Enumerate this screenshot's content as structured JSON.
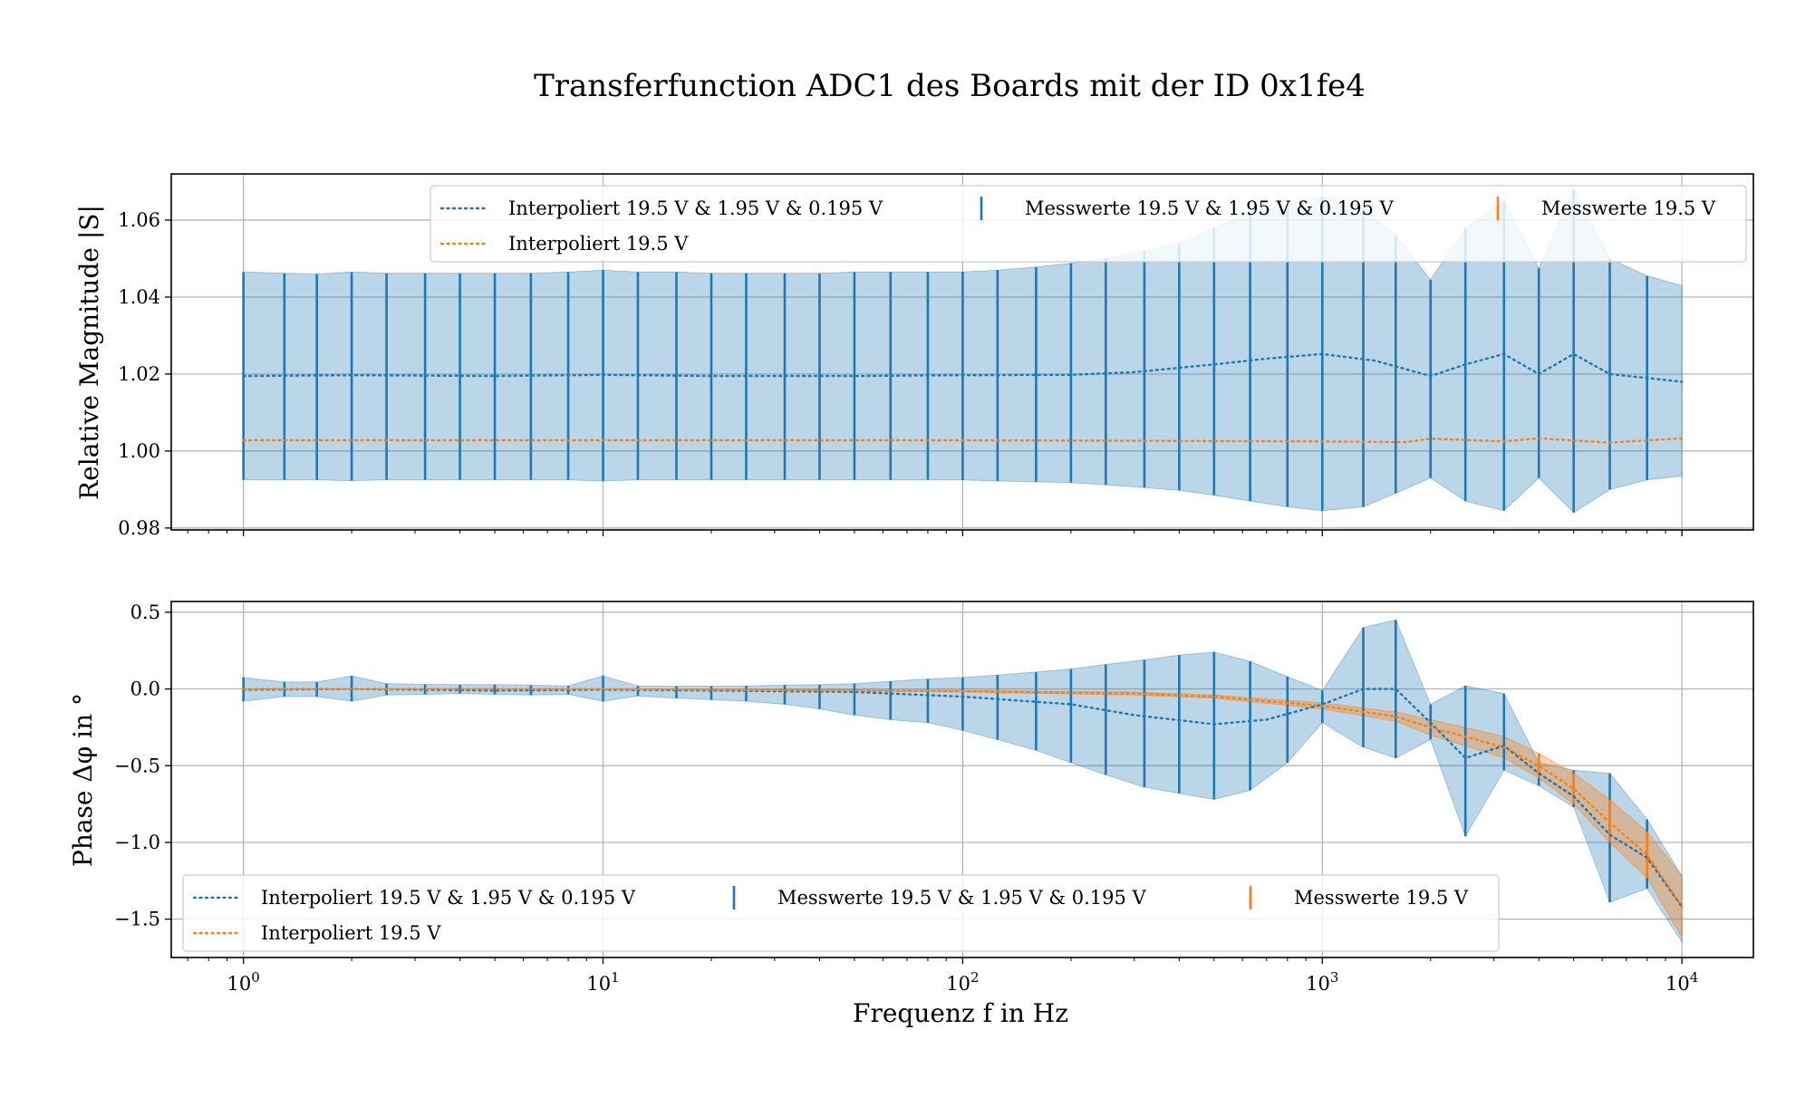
{
  "title": "Transferfunction ADC1 des Boards mit der ID 0x1fe4",
  "colors": {
    "blue": "#1f77b4",
    "orange": "#ff7f0e",
    "grid": "#b0b0b0"
  },
  "chart_data": [
    {
      "type": "line",
      "panel": "magnitude",
      "ylabel": "Relative Magnitude |S|",
      "xlabel": "",
      "xscale": "log",
      "xlim": [
        0.63,
        15800
      ],
      "ylim": [
        0.9795,
        1.072
      ],
      "yticks": [
        0.98,
        1.0,
        1.02,
        1.04,
        1.06
      ],
      "ytick_labels": [
        "0.98",
        "1.00",
        "1.02",
        "1.04",
        "1.06"
      ],
      "grid": true,
      "legend_position": "upper right",
      "legend": {
        "blue_line": "Interpoliert 19.5 V & 1.95 V & 0.195 V",
        "orange_line": "Interpoliert 19.5 V",
        "blue_bars": "Messwerte 19.5 V & 1.95 V & 0.195 V",
        "orange_bars": "Messwerte 19.5 V"
      },
      "series": [
        {
          "name": "Interpoliert 19.5 V & 1.95 V & 0.195 V",
          "x": [
            1,
            2,
            5,
            10,
            20,
            50,
            100,
            200,
            300,
            500,
            700,
            1000,
            1400,
            2000,
            2500,
            3200,
            4000,
            5000,
            6300,
            10000
          ],
          "y": [
            1.0195,
            1.0197,
            1.0195,
            1.0198,
            1.0195,
            1.0195,
            1.0197,
            1.0198,
            1.0205,
            1.0225,
            1.024,
            1.0252,
            1.0235,
            1.0195,
            1.0225,
            1.0252,
            1.02,
            1.0252,
            1.02,
            1.018
          ]
        },
        {
          "name": "Interpoliert 19.5 V",
          "x": [
            1,
            10,
            100,
            1000,
            1700,
            2000,
            3200,
            4000,
            6300,
            10000
          ],
          "y": [
            1.0028,
            1.0028,
            1.0028,
            1.0025,
            1.0023,
            1.0032,
            1.0025,
            1.0033,
            1.0022,
            1.0033
          ]
        }
      ],
      "errorbars": [
        {
          "name": "Messwerte 19.5 V & 1.95 V & 0.195 V",
          "x": [
            1,
            1.3,
            1.6,
            2,
            2.5,
            3.2,
            4,
            5,
            6.3,
            8,
            10,
            12.5,
            16,
            20,
            25,
            32,
            40,
            50,
            63,
            80,
            100,
            125,
            160,
            200,
            250,
            320,
            400,
            500,
            630,
            800,
            1000,
            1300,
            1600,
            2000,
            2500,
            3200,
            4000,
            5000,
            6300,
            8000
          ],
          "upper": [
            1.0465,
            1.0462,
            1.046,
            1.0465,
            1.0462,
            1.0462,
            1.0462,
            1.0462,
            1.0462,
            1.0465,
            1.047,
            1.0465,
            1.0465,
            1.0462,
            1.0462,
            1.0462,
            1.0462,
            1.0465,
            1.0465,
            1.0465,
            1.0465,
            1.047,
            1.0478,
            1.0488,
            1.05,
            1.052,
            1.054,
            1.058,
            1.062,
            1.064,
            1.066,
            1.063,
            1.056,
            1.0445,
            1.058,
            1.065,
            1.0475,
            1.068,
            1.05,
            1.0455
          ],
          "lower": [
            0.9925,
            0.9925,
            0.9925,
            0.9923,
            0.9925,
            0.9925,
            0.9925,
            0.9925,
            0.9925,
            0.9925,
            0.9922,
            0.9925,
            0.9925,
            0.9925,
            0.9925,
            0.9925,
            0.9925,
            0.9925,
            0.9925,
            0.9925,
            0.9925,
            0.9922,
            0.992,
            0.9918,
            0.9912,
            0.9905,
            0.9898,
            0.9885,
            0.987,
            0.9855,
            0.9845,
            0.9855,
            0.989,
            0.993,
            0.987,
            0.9845,
            0.993,
            0.984,
            0.99,
            0.9925
          ]
        }
      ]
    },
    {
      "type": "line",
      "panel": "phase",
      "ylabel": "Phase Δφ in °",
      "xlabel": "Frequenz f in Hz",
      "xscale": "log",
      "xlim": [
        0.63,
        15800
      ],
      "ylim": [
        -1.75,
        0.57
      ],
      "yticks": [
        0.5,
        0.0,
        -0.5,
        -1.0,
        -1.5
      ],
      "ytick_labels": [
        "0.5",
        "0.0",
        "−0.5",
        "−1.0",
        "−1.5"
      ],
      "xticks": [
        1,
        10,
        100,
        1000,
        10000
      ],
      "xtick_labels": [
        {
          "base": "10",
          "exp": "0"
        },
        {
          "base": "10",
          "exp": "1"
        },
        {
          "base": "10",
          "exp": "2"
        },
        {
          "base": "10",
          "exp": "3"
        },
        {
          "base": "10",
          "exp": "4"
        }
      ],
      "grid": true,
      "legend_position": "lower left",
      "legend": {
        "blue_line": "Interpoliert 19.5 V & 1.95 V & 0.195 V",
        "orange_line": "Interpoliert 19.5 V",
        "blue_bars": "Messwerte 19.5 V & 1.95 V & 0.195 V",
        "orange_bars": "Messwerte 19.5 V"
      },
      "series": [
        {
          "name": "Interpoliert 19.5 V & 1.95 V & 0.195 V",
          "x": [
            1,
            2,
            5,
            10,
            20,
            50,
            100,
            200,
            300,
            500,
            700,
            1000,
            1300,
            1600,
            2000,
            2500,
            3200,
            4000,
            5000,
            6300,
            8000,
            10000
          ],
          "y": [
            -0.005,
            0.0,
            -0.01,
            -0.005,
            -0.01,
            -0.02,
            -0.05,
            -0.1,
            -0.17,
            -0.23,
            -0.2,
            -0.1,
            0.0,
            0.0,
            -0.22,
            -0.45,
            -0.37,
            -0.55,
            -0.7,
            -0.95,
            -1.1,
            -1.42
          ]
        },
        {
          "name": "Interpoliert 19.5 V",
          "x": [
            1,
            10,
            100,
            300,
            500,
            1000,
            1600,
            2000,
            3200,
            4000,
            5000,
            6300,
            8000,
            10000
          ],
          "y": [
            0.0,
            0.0,
            -0.015,
            -0.03,
            -0.05,
            -0.11,
            -0.18,
            -0.25,
            -0.38,
            -0.5,
            -0.65,
            -0.87,
            -1.08,
            -1.42
          ]
        }
      ],
      "bands": [
        {
          "name": "Messwerte 19.5 V",
          "x": [
            1,
            10,
            100,
            300,
            500,
            1000,
            1600,
            2000,
            3200,
            4000,
            5000,
            6300,
            8000,
            10000
          ],
          "upper": [
            0.0,
            0.0,
            -0.01,
            -0.02,
            -0.04,
            -0.09,
            -0.15,
            -0.2,
            -0.31,
            -0.42,
            -0.55,
            -0.72,
            -0.93,
            -1.22
          ],
          "lower": [
            0.0,
            0.0,
            -0.02,
            -0.04,
            -0.06,
            -0.13,
            -0.21,
            -0.3,
            -0.45,
            -0.58,
            -0.75,
            -1.0,
            -1.23,
            -1.62
          ]
        }
      ],
      "errorbars": [
        {
          "name": "Messwerte 19.5 V & 1.95 V & 0.195 V",
          "x": [
            1,
            1.3,
            1.6,
            2,
            2.5,
            3.2,
            4,
            5,
            6.3,
            8,
            10,
            12.5,
            16,
            20,
            25,
            32,
            40,
            50,
            63,
            80,
            100,
            125,
            160,
            200,
            250,
            320,
            400,
            500,
            630,
            800,
            1000,
            1300,
            1600,
            2000,
            2500,
            3200,
            4000,
            5000,
            6300,
            8000
          ],
          "upper": [
            0.075,
            0.045,
            0.045,
            0.085,
            0.035,
            0.03,
            0.028,
            0.028,
            0.025,
            0.02,
            0.085,
            0.02,
            0.018,
            0.018,
            0.02,
            0.025,
            0.028,
            0.035,
            0.05,
            0.065,
            0.075,
            0.09,
            0.11,
            0.13,
            0.16,
            0.19,
            0.22,
            0.24,
            0.18,
            0.08,
            -0.01,
            0.4,
            0.45,
            -0.1,
            0.02,
            -0.03,
            -0.48,
            -0.53,
            -0.55,
            -0.85
          ],
          "lower": [
            -0.08,
            -0.05,
            -0.05,
            -0.08,
            -0.04,
            -0.035,
            -0.03,
            -0.035,
            -0.04,
            -0.035,
            -0.08,
            -0.045,
            -0.06,
            -0.07,
            -0.08,
            -0.1,
            -0.13,
            -0.17,
            -0.2,
            -0.22,
            -0.27,
            -0.33,
            -0.4,
            -0.48,
            -0.56,
            -0.64,
            -0.68,
            -0.72,
            -0.66,
            -0.48,
            -0.22,
            -0.38,
            -0.45,
            -0.33,
            -0.96,
            -0.53,
            -0.63,
            -0.77,
            -1.39,
            -1.3
          ]
        },
        {
          "name": "Messwerte 19.5 V",
          "x": [
            4000,
            5000,
            6300,
            8000
          ],
          "upper": [
            -0.42,
            -0.55,
            -0.72,
            -0.93
          ],
          "lower": [
            -0.58,
            -0.75,
            -1.0,
            -1.23
          ]
        }
      ]
    }
  ]
}
